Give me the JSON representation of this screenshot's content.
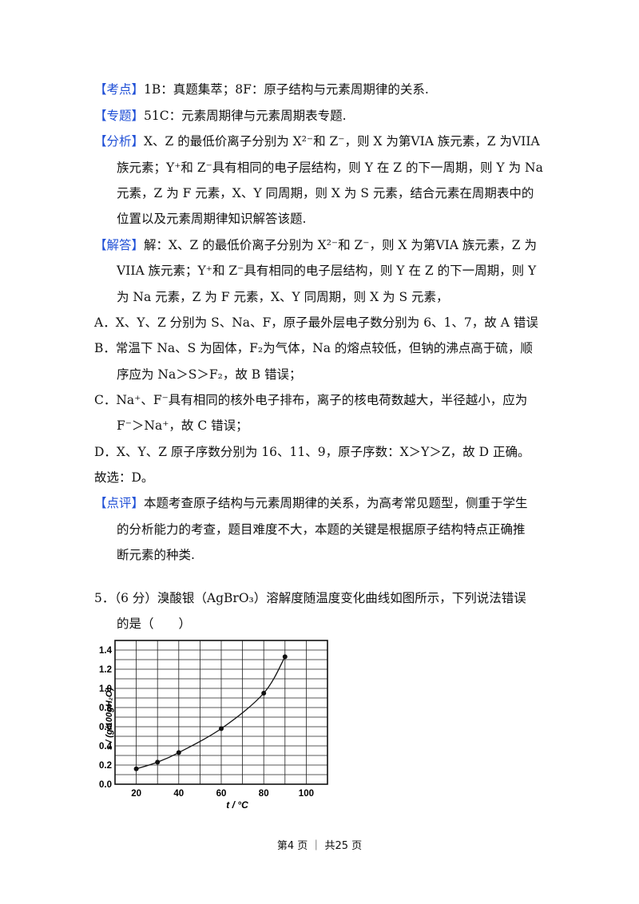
{
  "blocks": [
    {
      "tag": "【考点】",
      "text": "1B：真题集萃；8F：原子结构与元素周期律的关系."
    },
    {
      "tag": "【专题】",
      "text": "51C：元素周期律与元素周期表专题."
    },
    {
      "tag": "【分析】",
      "lines": [
        "X、Z 的最低价离子分别为 X²⁻和 Z⁻，则 X 为第VIA 族元素，Z 为VIIA",
        "族元素；Y⁺和 Z⁻具有相同的电子层结构，则 Y 在 Z 的下一周期，则 Y 为 Na",
        "元素，Z 为 F 元素，X、Y 同周期，则 X 为 S 元素，结合元素在周期表中的",
        "位置以及元素周期律知识解答该题."
      ]
    },
    {
      "tag": "【解答】",
      "lines": [
        "解：X、Z 的最低价离子分别为 X²⁻和 Z⁻，则 X 为第VIA 族元素，Z 为",
        "VIIA 族元素；Y⁺和 Z⁻具有相同的电子层结构，则 Y 在 Z 的下一周期，则 Y",
        "为 Na 元素，Z 为 F 元素，X、Y 同周期，则 X 为 S 元素，"
      ]
    },
    {
      "lines": [
        "A．X、Y、Z 分别为 S、Na、F，原子最外层电子数分别为 6、1、7，故 A 错误",
        "B．常温下 Na、S 为固体，F₂为气体，Na 的熔点较低，但钠的沸点高于硫，顺",
        "序应为 Na＞S＞F₂，故 B 错误；",
        "C．Na⁺、F⁻具有相同的核外电子排布，离子的核电荷数越大，半径越小，应为",
        "F⁻＞Na⁺，故 C 错误；",
        "D．X、Y、Z 原子序数分别为 16、11、9，原子序数：X＞Y＞Z，故 D 正确。",
        "故选：D。"
      ]
    },
    {
      "tag": "【点评】",
      "lines": [
        "本题考查原子结构与元素周期律的关系，为高考常见题型，侧重于学生",
        "的分析能力的考查，题目难度不大，本题的关键是根据原子结构特点正确推",
        "断元素的种类."
      ]
    }
  ],
  "question": {
    "line1": "5．（6 分）溴酸银（AgBrO₃）溶解度随温度变化曲线如图所示，下列说法错误",
    "line2": "的是（　　）"
  },
  "chart_data": {
    "type": "line",
    "xlabel": "t / °C",
    "ylabel": "s / (g/100gH₂O)",
    "xlim": [
      10,
      110
    ],
    "ylim": [
      0,
      1.5
    ],
    "xticks": [
      20,
      40,
      60,
      80,
      100
    ],
    "yticks": [
      0.0,
      0.2,
      0.4,
      0.6,
      0.8,
      1.0,
      1.2,
      1.4
    ],
    "ytick_labels": [
      "0.0",
      "0.2",
      "0.4",
      "0.6",
      "0.8",
      "1.0",
      "1.2",
      "1.4"
    ],
    "grid": true,
    "series": [
      {
        "x": [
          20,
          30,
          40,
          60,
          80,
          90
        ],
        "y": [
          0.16,
          0.23,
          0.33,
          0.58,
          0.95,
          1.33
        ]
      }
    ]
  },
  "footer": "第4 页 ｜ 共25 页"
}
